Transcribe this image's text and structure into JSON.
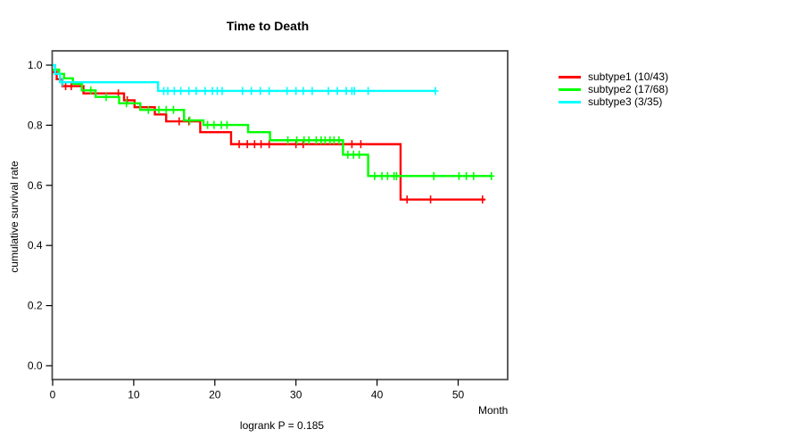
{
  "title": "Time to Death",
  "footnote": "logrank P = 0.185",
  "axes": {
    "xlabel": "Month",
    "ylabel": "cumulative survival rate"
  },
  "chart_data": {
    "type": "line",
    "variant": "kaplan-meier-step",
    "title": "Time to Death",
    "xlabel": "Month",
    "ylabel": "cumulative survival rate",
    "annotation": "logrank P = 0.185",
    "xlim": [
      0,
      56
    ],
    "ylim": [
      0.0,
      1.0
    ],
    "xticks": [
      0,
      10,
      20,
      30,
      40,
      50
    ],
    "yticks": [
      "0.0",
      "0.2",
      "0.4",
      "0.6",
      "0.8",
      "1.0"
    ],
    "grid": false,
    "legend_position": "right-outside",
    "series": [
      {
        "name": "subtype1 (10/43)",
        "color": "#ff0000",
        "steps": [
          [
            0,
            0.977
          ],
          [
            0.5,
            0.953
          ],
          [
            1.2,
            0.93
          ],
          [
            3.8,
            0.906
          ],
          [
            8.8,
            0.883
          ],
          [
            10.1,
            0.86
          ],
          [
            12.6,
            0.836
          ],
          [
            14.0,
            0.813
          ],
          [
            18.2,
            0.777
          ],
          [
            22.0,
            0.737
          ],
          [
            42.9,
            0.553
          ]
        ],
        "end": 53.3,
        "censors": [
          1.6,
          2.3,
          8.1,
          9.2,
          15.6,
          16.8,
          23.0,
          24.0,
          24.9,
          25.7,
          26.7,
          30.0,
          30.9,
          36.9,
          38.0,
          43.7,
          46.6,
          53.0
        ]
      },
      {
        "name": "subtype2 (17/68)",
        "color": "#00ff00",
        "steps": [
          [
            0,
            0.985
          ],
          [
            0.8,
            0.971
          ],
          [
            1.4,
            0.956
          ],
          [
            2.5,
            0.938
          ],
          [
            3.6,
            0.916
          ],
          [
            5.3,
            0.894
          ],
          [
            8.2,
            0.873
          ],
          [
            10.8,
            0.851
          ],
          [
            16.2,
            0.816
          ],
          [
            18.6,
            0.801
          ],
          [
            24.1,
            0.777
          ],
          [
            26.8,
            0.75
          ],
          [
            35.8,
            0.702
          ],
          [
            38.9,
            0.631
          ]
        ],
        "end": 54.1,
        "censors": [
          4.7,
          6.6,
          9.1,
          11.8,
          13.1,
          14.0,
          14.9,
          16.9,
          19.1,
          19.9,
          20.8,
          21.5,
          29.0,
          30.1,
          31.0,
          31.6,
          32.5,
          33.1,
          33.6,
          34.2,
          34.7,
          35.3,
          36.4,
          37.1,
          37.8,
          39.7,
          40.6,
          41.3,
          42.1,
          42.4,
          47.0,
          50.1,
          51.0,
          51.9,
          54.1
        ]
      },
      {
        "name": "subtype3 (3/35)",
        "color": "#00ffff",
        "steps": [
          [
            0,
            1.0
          ],
          [
            0.3,
            0.971
          ],
          [
            0.9,
            0.943
          ],
          [
            13.0,
            0.914
          ]
        ],
        "end": 47.2,
        "censors": [
          1.2,
          13.7,
          14.2,
          15.0,
          15.8,
          16.8,
          17.7,
          18.8,
          19.7,
          20.3,
          20.9,
          23.4,
          24.5,
          25.6,
          26.7,
          28.9,
          30.0,
          30.9,
          32.0,
          34.0,
          35.1,
          36.2,
          36.9,
          37.2,
          38.9,
          47.2
        ]
      }
    ]
  }
}
